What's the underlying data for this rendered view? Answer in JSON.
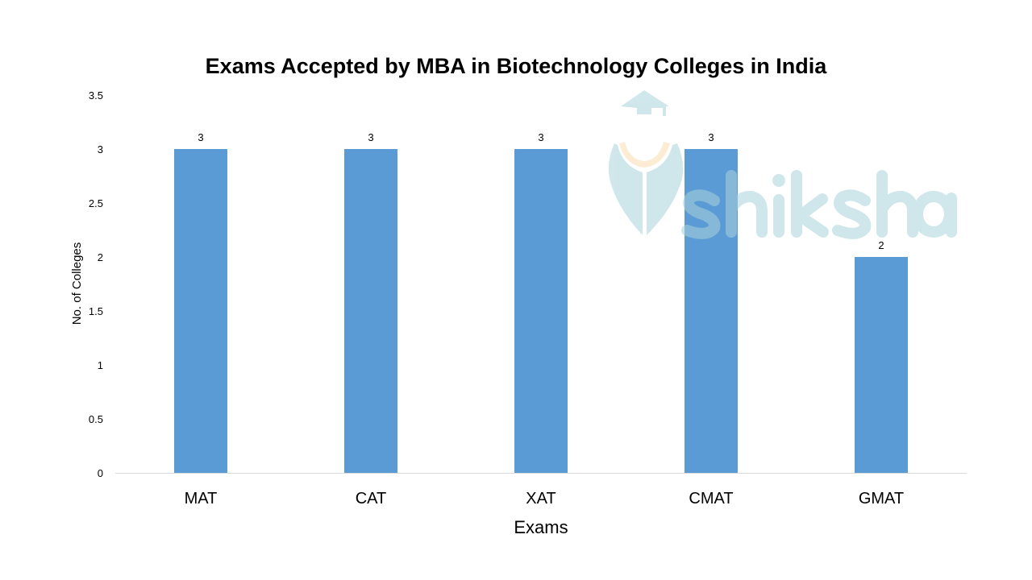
{
  "chart_data": {
    "type": "bar",
    "title": "Exams Accepted by MBA in Biotechnology Colleges in India",
    "xlabel": "Exams",
    "ylabel": "No. of Colleges",
    "categories": [
      "MAT",
      "CAT",
      "XAT",
      "CMAT",
      "GMAT"
    ],
    "values": [
      3,
      3,
      3,
      3,
      2
    ],
    "data_labels": [
      "3",
      "3",
      "3",
      "3",
      "2"
    ],
    "ylim": [
      0,
      3.5
    ],
    "yticks": [
      "0",
      "0.5",
      "1",
      "1.5",
      "2",
      "2.5",
      "3",
      "3.5"
    ],
    "grid": false,
    "legend": "none",
    "bar_color": "#5B9BD5"
  },
  "watermark": {
    "text": "shiksha",
    "color": "#A9D3DA"
  }
}
